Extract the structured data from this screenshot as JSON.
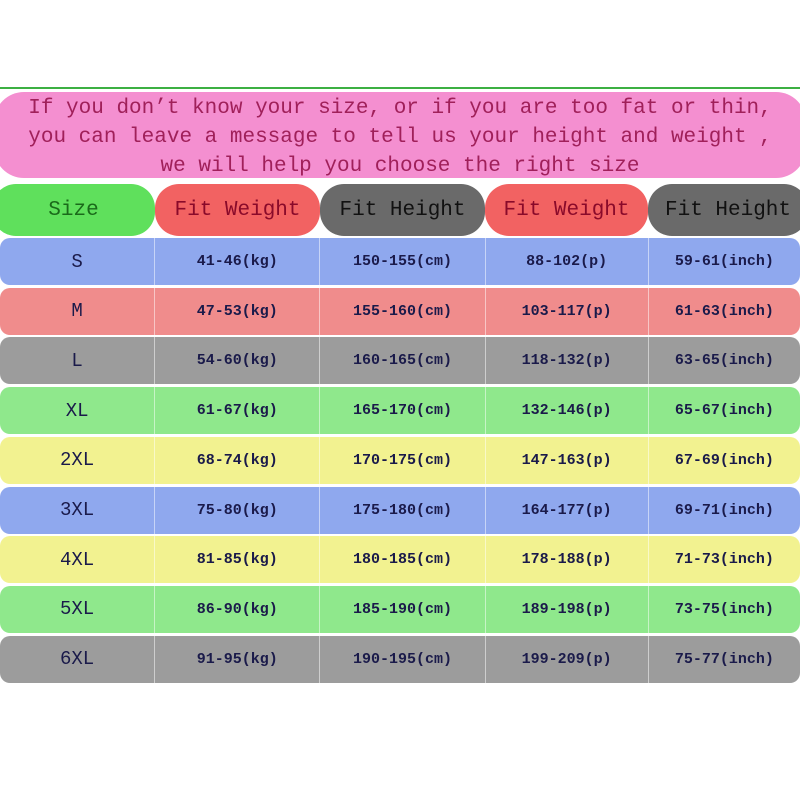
{
  "note": {
    "lines": [
      "If you don’t know your size, or if you are too fat or thin,",
      "you can leave a message to tell us your height and weight ,",
      "we will help you choose the right size"
    ]
  },
  "headers": [
    {
      "label": "Size",
      "color": "#5fe05c",
      "text": "#1a6a1a"
    },
    {
      "label": "Fit Weight",
      "color": "#f26262",
      "text": "#8a0a2a"
    },
    {
      "label": "Fit Height",
      "color": "#6a6a6a",
      "text": "#111111"
    },
    {
      "label": "Fit Weight",
      "color": "#f26262",
      "text": "#8a0a2a"
    },
    {
      "label": "Fit Height",
      "color": "#6a6a6a",
      "text": "#111111"
    }
  ],
  "rows": [
    {
      "size": "S",
      "kg": "41-46(kg)",
      "cm": "150-155(cm)",
      "p": "88-102(p)",
      "inch": "59-61(inch)",
      "color": "#8fa8ee"
    },
    {
      "size": "M",
      "kg": "47-53(kg)",
      "cm": "155-160(cm)",
      "p": "103-117(p)",
      "inch": "61-63(inch)",
      "color": "#f08c8c"
    },
    {
      "size": "L",
      "kg": "54-60(kg)",
      "cm": "160-165(cm)",
      "p": "118-132(p)",
      "inch": "63-65(inch)",
      "color": "#9c9c9c"
    },
    {
      "size": "XL",
      "kg": "61-67(kg)",
      "cm": "165-170(cm)",
      "p": "132-146(p)",
      "inch": "65-67(inch)",
      "color": "#8fe88c"
    },
    {
      "size": "2XL",
      "kg": "68-74(kg)",
      "cm": "170-175(cm)",
      "p": "147-163(p)",
      "inch": "67-69(inch)",
      "color": "#f2f290"
    },
    {
      "size": "3XL",
      "kg": "75-80(kg)",
      "cm": "175-180(cm)",
      "p": "164-177(p)",
      "inch": "69-71(inch)",
      "color": "#8fa8ee"
    },
    {
      "size": "4XL",
      "kg": "81-85(kg)",
      "cm": "180-185(cm)",
      "p": "178-188(p)",
      "inch": "71-73(inch)",
      "color": "#f2f290"
    },
    {
      "size": "5XL",
      "kg": "86-90(kg)",
      "cm": "185-190(cm)",
      "p": "189-198(p)",
      "inch": "73-75(inch)",
      "color": "#8fe88c"
    },
    {
      "size": "6XL",
      "kg": "91-95(kg)",
      "cm": "190-195(cm)",
      "p": "199-209(p)",
      "inch": "75-77(inch)",
      "color": "#9c9c9c"
    }
  ]
}
